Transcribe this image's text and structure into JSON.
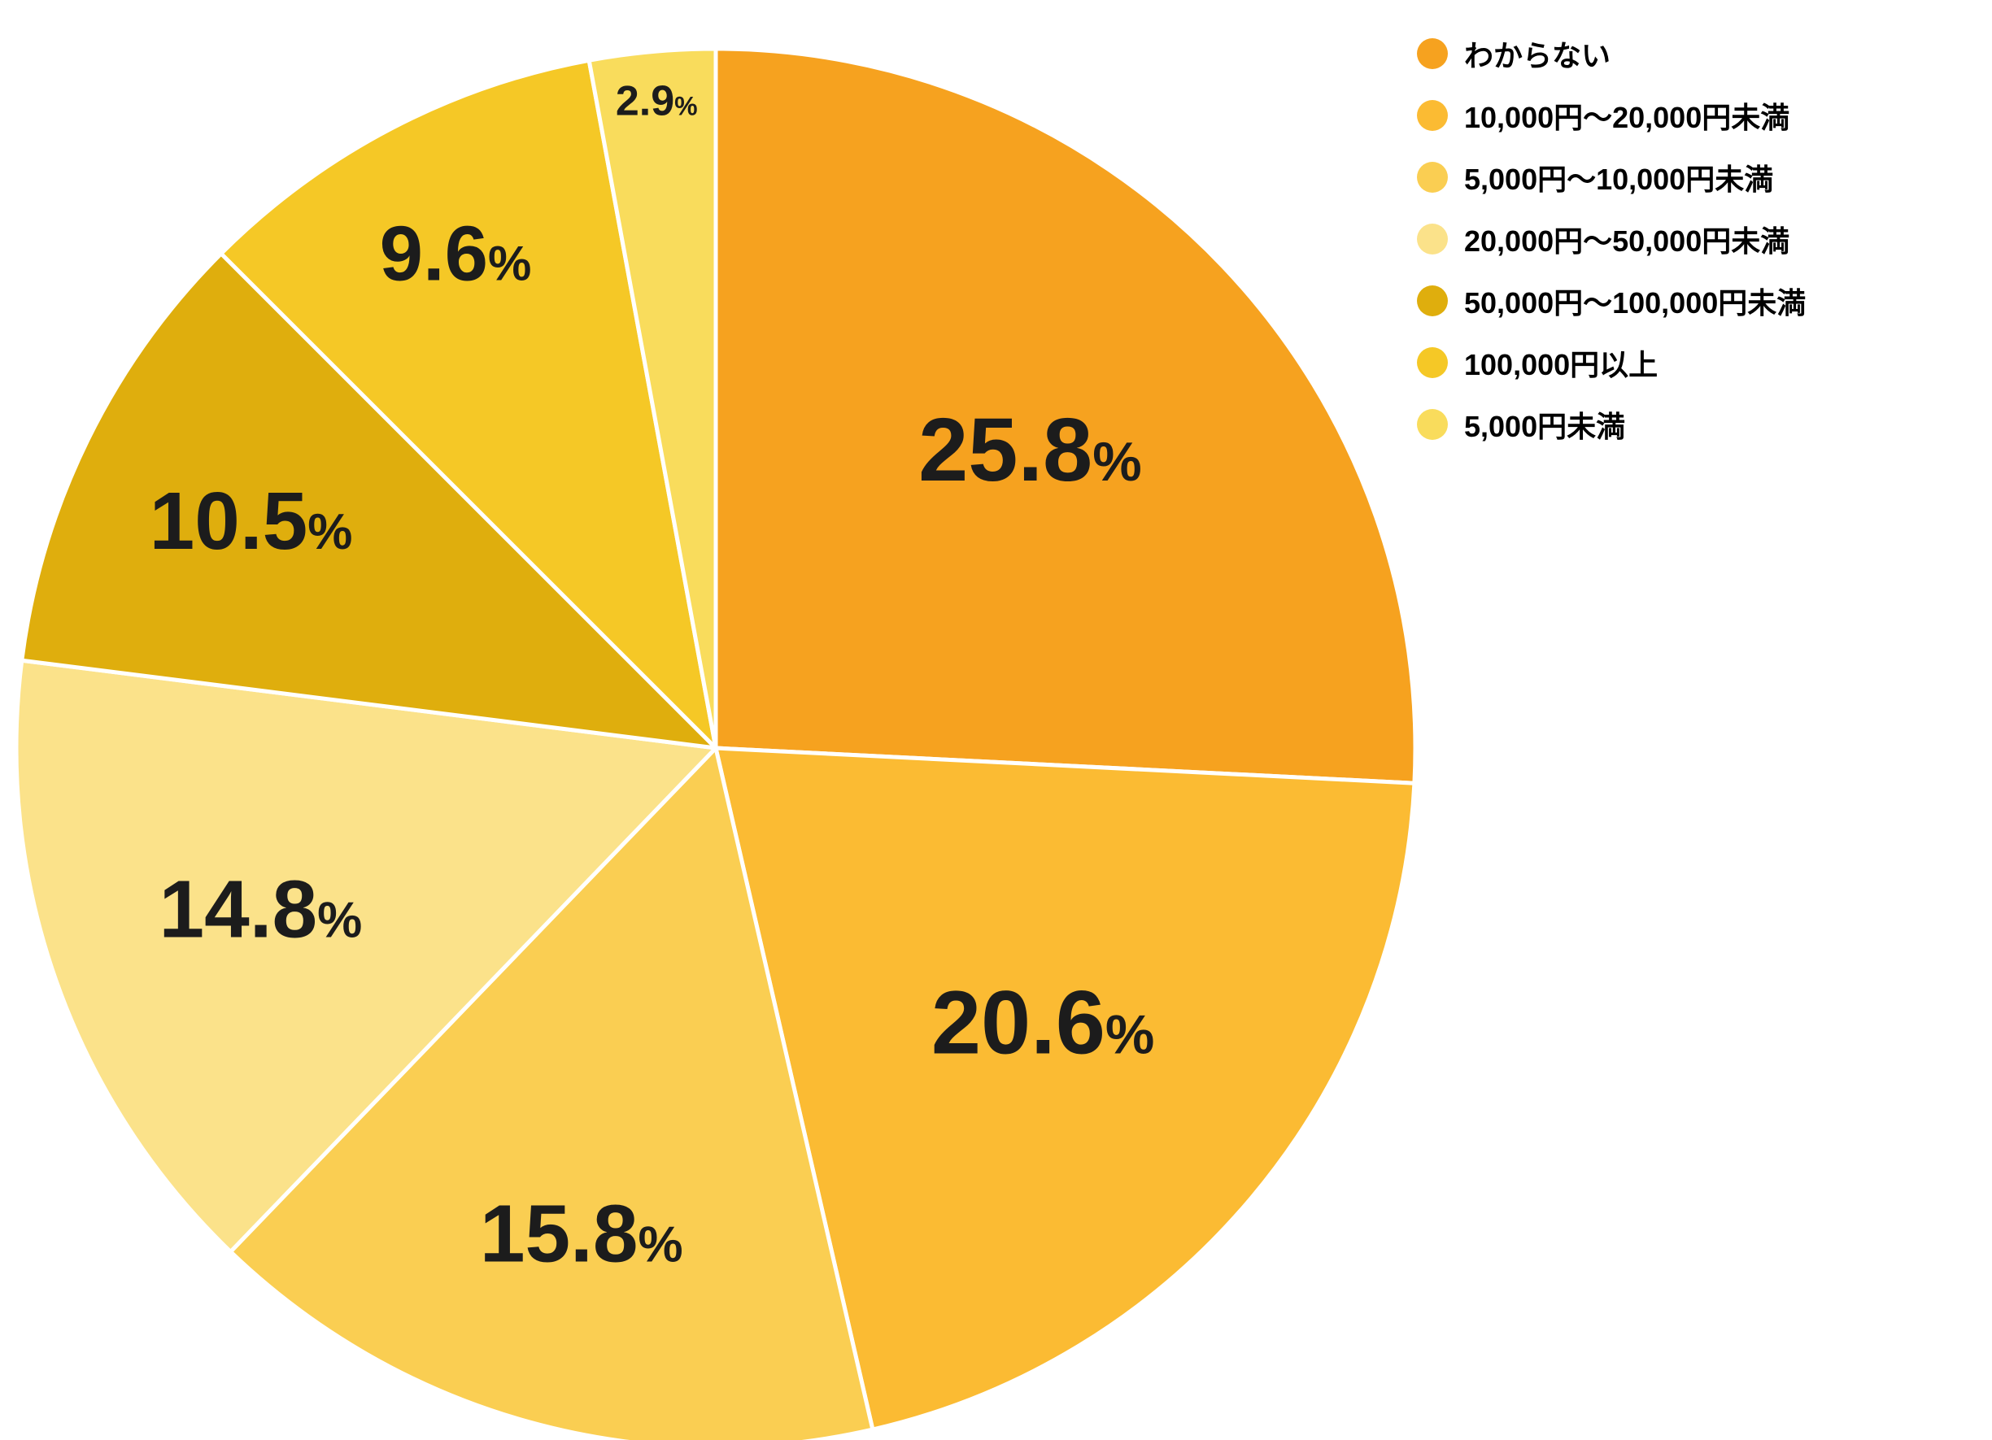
{
  "chart_data": {
    "type": "pie",
    "title": "",
    "direction": "clockwise",
    "start_angle_deg": 0,
    "legend_position": "top-right",
    "percent_suffix": "%",
    "slices": [
      {
        "label": "わからない",
        "value": 25.8,
        "display": "25.8",
        "color": "#F6A21F",
        "label_r_frac": 0.62,
        "label_size": 110
      },
      {
        "label": "10,000円〜20,000円未満",
        "value": 20.6,
        "display": "20.6",
        "color": "#FBBB33",
        "label_r_frac": 0.61,
        "label_size": 110
      },
      {
        "label": "5,000円〜10,000円未満",
        "value": 15.8,
        "display": "15.8",
        "color": "#FACE52",
        "label_r_frac": 0.72,
        "label_size": 100
      },
      {
        "label": "20,000円〜50,000円未満",
        "value": 14.8,
        "display": "14.8",
        "color": "#FBE28A",
        "label_r_frac": 0.69,
        "label_size": 100
      },
      {
        "label": "50,000円〜100,000円未満",
        "value": 10.5,
        "display": "10.5",
        "color": "#DFAE0D",
        "label_r_frac": 0.74,
        "label_size": 100
      },
      {
        "label": "100,000円以上",
        "value": 9.6,
        "display": "9.6",
        "color": "#F5C826",
        "label_r_frac": 0.8,
        "label_size": 96
      },
      {
        "label": "5,000円未満",
        "value": 2.9,
        "display": "2.9",
        "color": "#F9DC5C",
        "label_r_frac": 0.93,
        "label_size": 52
      }
    ]
  }
}
